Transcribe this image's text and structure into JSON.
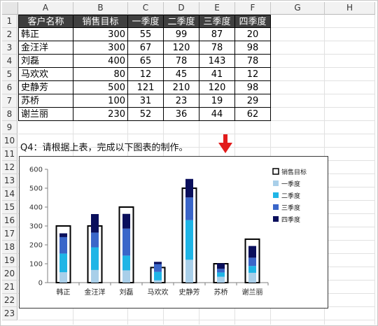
{
  "columns": [
    "A",
    "B",
    "C",
    "D",
    "E",
    "F",
    "G",
    "H"
  ],
  "rows": [
    "1",
    "2",
    "3",
    "4",
    "5",
    "6",
    "7",
    "8",
    "9",
    "10",
    "11",
    "12",
    "13",
    "14",
    "15",
    "16",
    "17",
    "18",
    "19",
    "20",
    "21",
    "22",
    "23"
  ],
  "table": {
    "headers": [
      "客户名称",
      "销售目标",
      "一季度",
      "二季度",
      "三季度",
      "四季度"
    ],
    "data": [
      [
        "韩正",
        "300",
        "55",
        "99",
        "87",
        "20"
      ],
      [
        "金汪洋",
        "300",
        "67",
        "120",
        "78",
        "98"
      ],
      [
        "刘磊",
        "400",
        "65",
        "78",
        "143",
        "78"
      ],
      [
        "马欢欢",
        "80",
        "12",
        "45",
        "41",
        "12"
      ],
      [
        "史静芳",
        "500",
        "121",
        "210",
        "120",
        "98"
      ],
      [
        "苏桥",
        "100",
        "31",
        "23",
        "19",
        "29"
      ],
      [
        "谢兰丽",
        "230",
        "52",
        "36",
        "44",
        "62"
      ]
    ]
  },
  "instruction": "Q4：请根据上表，完成以下图表的制作。",
  "colors": {
    "target_outline": "#000000",
    "q1": "#a9cfe9",
    "q2": "#1fb5e6",
    "q3": "#3a66c9",
    "q4": "#0a0f5c",
    "header_bg": "#3f3f3f",
    "arrow": "#e21b1b"
  },
  "chart_data": {
    "type": "bar",
    "stacked": true,
    "categories": [
      "韩正",
      "金汪洋",
      "刘磊",
      "马欢欢",
      "史静芳",
      "苏桥",
      "谢兰丽"
    ],
    "target": {
      "name": "销售目标",
      "values": [
        300,
        300,
        400,
        80,
        500,
        100,
        230
      ]
    },
    "series": [
      {
        "name": "一季度",
        "values": [
          55,
          67,
          65,
          12,
          121,
          31,
          52
        ]
      },
      {
        "name": "二季度",
        "values": [
          99,
          120,
          78,
          45,
          210,
          23,
          36
        ]
      },
      {
        "name": "三季度",
        "values": [
          87,
          78,
          143,
          41,
          120,
          19,
          44
        ]
      },
      {
        "name": "四季度",
        "values": [
          20,
          98,
          78,
          12,
          98,
          29,
          62
        ]
      }
    ],
    "yticks": [
      "0",
      "100",
      "200",
      "300",
      "400",
      "500",
      "600"
    ],
    "ylim": [
      0,
      600
    ],
    "legend_position": "top-right",
    "grid": false
  }
}
